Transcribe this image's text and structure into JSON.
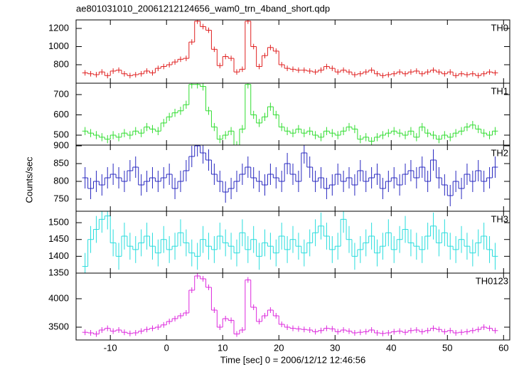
{
  "chart_data": {
    "type": "step",
    "title": "ae801031010_20061212124656_wam0_trn_4band_short.qdp",
    "xlabel": "Time [sec] 0 = 2006/12/12 12:46:56",
    "ylabel": "Counts/sec",
    "xlim": [
      -16.1,
      61.1
    ],
    "xticks": [
      -10,
      0,
      10,
      20,
      30,
      40,
      50,
      60
    ],
    "x": [
      -14.5,
      -13.5,
      -12.5,
      -11.5,
      -10.5,
      -9.5,
      -8.5,
      -7.5,
      -6.5,
      -5.5,
      -4.5,
      -3.5,
      -2.5,
      -1.5,
      -0.5,
      0.5,
      1.5,
      2.5,
      3.5,
      4.5,
      5.5,
      6.5,
      7.5,
      8.5,
      9.5,
      10.5,
      11.5,
      12.5,
      13.5,
      14.5,
      15.5,
      16.5,
      17.5,
      18.5,
      19.5,
      20.5,
      21.5,
      22.5,
      23.5,
      24.5,
      25.5,
      26.5,
      27.5,
      28.5,
      29.5,
      30.5,
      31.5,
      32.5,
      33.5,
      34.5,
      35.5,
      36.5,
      37.5,
      38.5,
      39.5,
      40.5,
      41.5,
      42.5,
      43.5,
      44.5,
      45.5,
      46.5,
      47.5,
      48.5,
      49.5,
      50.5,
      51.5,
      52.5,
      53.5,
      54.5,
      55.5,
      56.5,
      57.5,
      58.5
    ],
    "panels": [
      {
        "name": "TH0",
        "color": "#e02020",
        "error": 30,
        "ylim": [
          596,
          1294
        ],
        "yticks": [
          800,
          1000,
          1200
        ],
        "values": [
          710,
          700,
          690,
          720,
          680,
          730,
          740,
          700,
          680,
          690,
          700,
          730,
          710,
          760,
          780,
          800,
          830,
          860,
          870,
          1050,
          1280,
          1220,
          1180,
          970,
          790,
          890,
          870,
          720,
          750,
          1280,
          1000,
          780,
          900,
          990,
          950,
          800,
          760,
          750,
          740,
          740,
          730,
          720,
          740,
          780,
          760,
          720,
          740,
          720,
          690,
          700,
          720,
          740,
          700,
          680,
          690,
          700,
          720,
          700,
          720,
          730,
          700,
          720,
          740,
          720,
          700,
          720,
          680,
          700,
          690,
          700,
          680,
          700,
          720,
          710
        ]
      },
      {
        "name": "TH1",
        "color": "#30dd30",
        "error": 20,
        "ylim": [
          451,
          756
        ],
        "yticks": [
          500,
          600,
          700
        ],
        "values": [
          520,
          510,
          500,
          490,
          480,
          500,
          490,
          510,
          500,
          520,
          510,
          540,
          530,
          520,
          560,
          590,
          610,
          620,
          650,
          750,
          750,
          740,
          620,
          540,
          480,
          500,
          520,
          450,
          530,
          750,
          600,
          560,
          590,
          640,
          600,
          540,
          520,
          510,
          530,
          510,
          520,
          500,
          490,
          520,
          510,
          500,
          520,
          540,
          530,
          480,
          490,
          470,
          490,
          500,
          510,
          520,
          510,
          500,
          520,
          490,
          540,
          510,
          500,
          480,
          500,
          490,
          510,
          520,
          540,
          550,
          530,
          510,
          500,
          520
        ]
      },
      {
        "name": "TH2",
        "color": "#2828c0",
        "error": 30,
        "ylim": [
          716,
          902
        ],
        "yticks": [
          750,
          800,
          850,
          900
        ],
        "values": [
          810,
          780,
          800,
          790,
          810,
          820,
          810,
          800,
          830,
          840,
          790,
          800,
          810,
          800,
          810,
          820,
          780,
          800,
          830,
          870,
          900,
          880,
          860,
          820,
          800,
          770,
          780,
          800,
          820,
          840,
          810,
          800,
          790,
          820,
          810,
          800,
          850,
          820,
          800,
          880,
          840,
          800,
          810,
          780,
          790,
          820,
          800,
          810,
          790,
          830,
          800,
          810,
          820,
          780,
          800,
          810,
          790,
          820,
          830,
          810,
          840,
          800,
          860,
          810,
          790,
          760,
          800,
          780,
          820,
          800,
          830,
          800,
          810,
          840
        ]
      },
      {
        "name": "TH3",
        "color": "#28dddd",
        "error": 40,
        "ylim": [
          1350,
          1534
        ],
        "yticks": [
          1350,
          1400,
          1450,
          1500
        ],
        "values": [
          1370,
          1450,
          1480,
          1510,
          1520,
          1440,
          1400,
          1460,
          1430,
          1420,
          1440,
          1460,
          1430,
          1410,
          1450,
          1420,
          1430,
          1470,
          1440,
          1410,
          1400,
          1450,
          1430,
          1420,
          1460,
          1440,
          1430,
          1410,
          1470,
          1420,
          1450,
          1400,
          1440,
          1430,
          1410,
          1460,
          1420,
          1450,
          1430,
          1410,
          1440,
          1470,
          1490,
          1460,
          1420,
          1430,
          1510,
          1450,
          1400,
          1420,
          1440,
          1460,
          1410,
          1430,
          1470,
          1420,
          1450,
          1480,
          1440,
          1430,
          1420,
          1460,
          1490,
          1440,
          1470,
          1430,
          1420,
          1450,
          1430,
          1410,
          1440,
          1460,
          1420,
          1400
        ]
      },
      {
        "name": "TH0123",
        "color": "#dd28dd",
        "error": 50,
        "ylim": [
          3275,
          4450
        ],
        "yticks": [
          3500,
          4000
        ],
        "values": [
          3410,
          3400,
          3380,
          3450,
          3480,
          3430,
          3450,
          3410,
          3390,
          3400,
          3430,
          3460,
          3480,
          3500,
          3540,
          3600,
          3650,
          3700,
          3750,
          4150,
          4400,
          4350,
          4200,
          3800,
          3500,
          3650,
          3620,
          3380,
          3450,
          4330,
          3850,
          3600,
          3700,
          3800,
          3700,
          3550,
          3500,
          3480,
          3470,
          3460,
          3450,
          3420,
          3440,
          3480,
          3470,
          3420,
          3450,
          3430,
          3400,
          3410,
          3420,
          3450,
          3400,
          3390,
          3400,
          3420,
          3430,
          3410,
          3440,
          3450,
          3420,
          3440,
          3480,
          3460,
          3420,
          3440,
          3400,
          3410,
          3420,
          3440,
          3460,
          3500,
          3480,
          3440
        ]
      }
    ]
  }
}
